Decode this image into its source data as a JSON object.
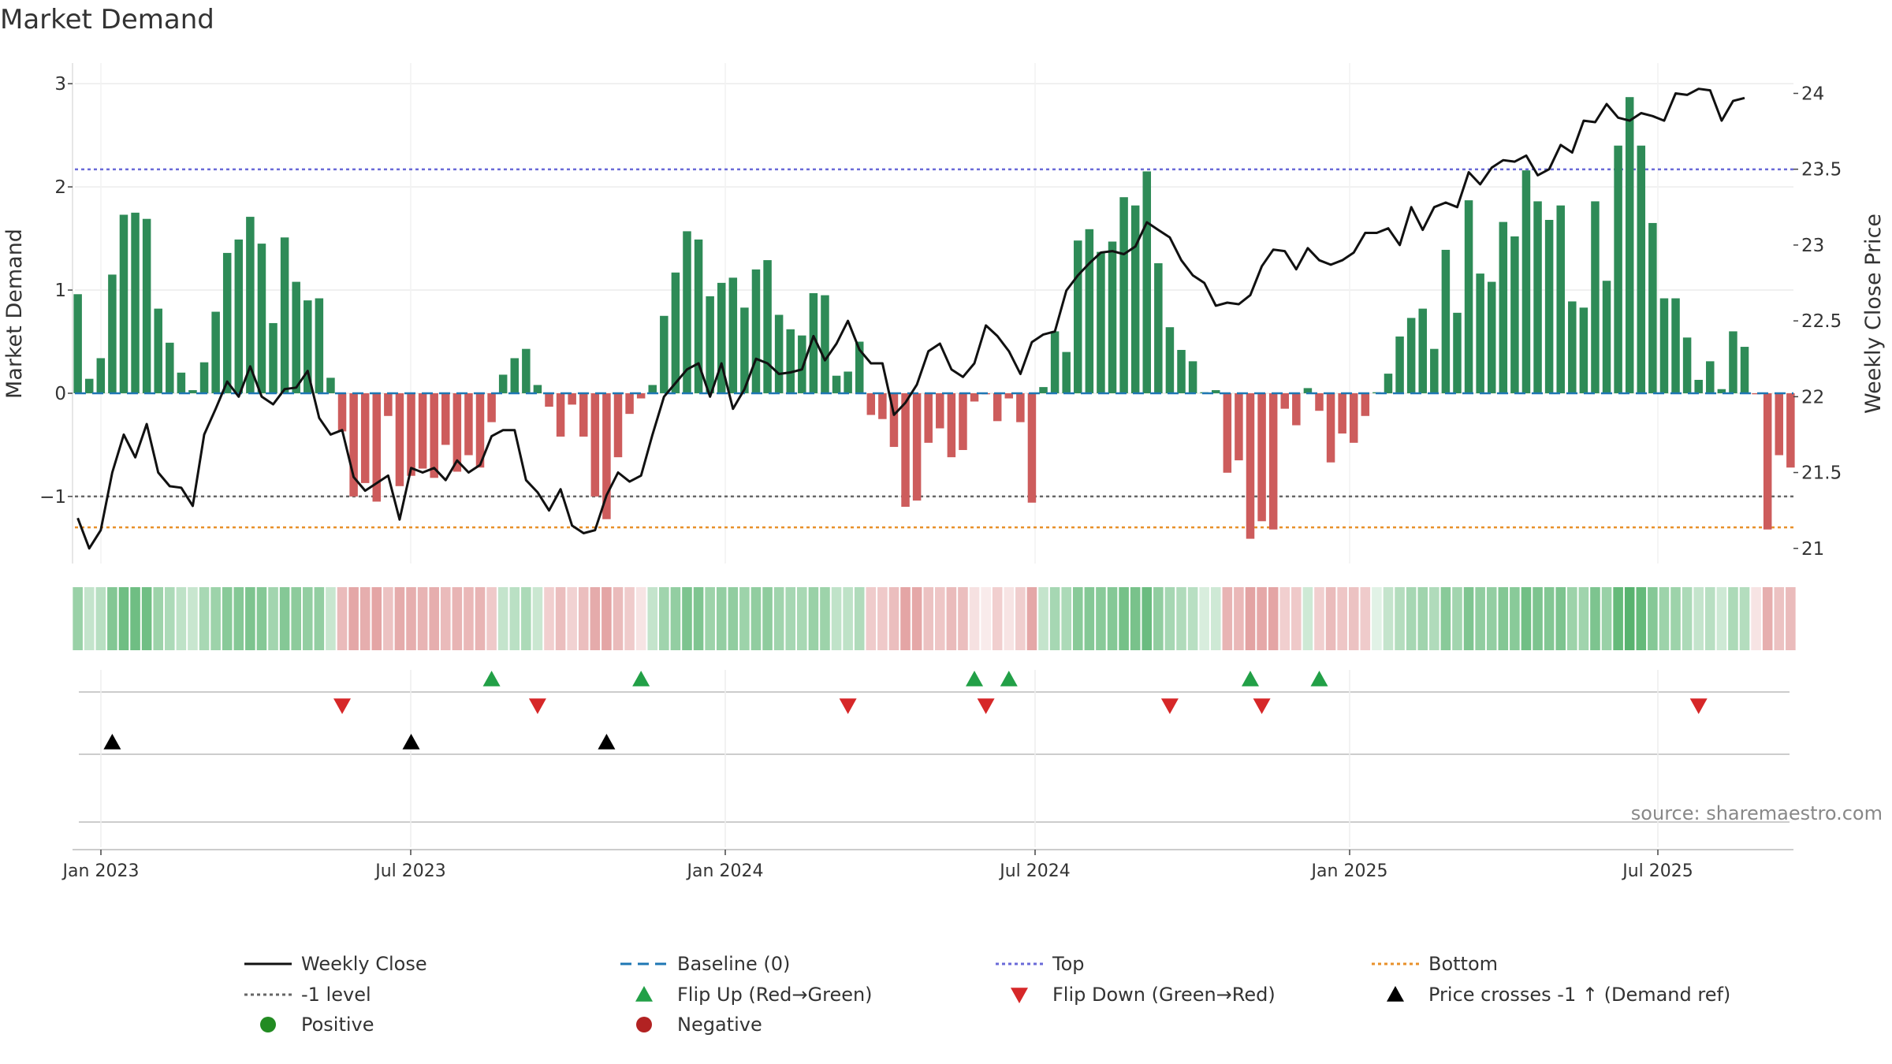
{
  "chart_data": {
    "type": "bar+line",
    "title": "Market Demand",
    "source": "source: sharemaestro.com",
    "ylabel_left": "Market Demand",
    "ylabel_right": "Weekly Close Price",
    "ylim_left": [
      -1.65,
      3.2
    ],
    "ylim_right": [
      20.9,
      24.2
    ],
    "yticks_left": [
      "3",
      "2",
      "1",
      "0",
      "−1"
    ],
    "yticks_right": [
      "24",
      "23.5",
      "23",
      "22.5",
      "22",
      "21.5",
      "21"
    ],
    "xticks": [
      "Jan 2023",
      "Jul 2023",
      "Jan 2024",
      "Jul 2024",
      "Jan 2025",
      "Jul 2025"
    ],
    "reference_lines": {
      "top": 2.17,
      "bottom": -1.3,
      "minus_one": -1,
      "baseline": 0
    },
    "demand": [
      0.96,
      0.14,
      0.34,
      1.15,
      1.73,
      1.75,
      1.69,
      0.82,
      0.49,
      0.2,
      0.03,
      0.3,
      0.79,
      1.36,
      1.49,
      1.71,
      1.45,
      0.68,
      1.51,
      1.08,
      0.9,
      0.92,
      0.15,
      -0.37,
      -1.0,
      -0.87,
      -1.05,
      -0.22,
      -0.9,
      -0.8,
      -0.73,
      -0.82,
      -0.5,
      -0.76,
      -0.6,
      -0.72,
      -0.28,
      0.18,
      0.34,
      0.43,
      0.08,
      -0.13,
      -0.42,
      -0.11,
      -0.42,
      -1.0,
      -1.22,
      -0.62,
      -0.2,
      -0.05,
      0.08,
      0.75,
      1.17,
      1.57,
      1.49,
      0.94,
      1.07,
      1.12,
      0.83,
      1.2,
      1.29,
      0.76,
      0.62,
      0.56,
      0.97,
      0.95,
      0.17,
      0.21,
      0.5,
      -0.21,
      -0.25,
      -0.52,
      -1.1,
      -1.04,
      -0.48,
      -0.34,
      -0.62,
      -0.55,
      -0.08,
      -0.01,
      -0.27,
      -0.05,
      -0.28,
      -1.06,
      0.06,
      0.6,
      0.4,
      1.48,
      1.59,
      1.37,
      1.47,
      1.9,
      1.82,
      2.15,
      1.26,
      0.64,
      0.42,
      0.31,
      0.01,
      0.03,
      -0.77,
      -0.65,
      -1.41,
      -1.24,
      -1.32,
      -0.15,
      -0.31,
      0.05,
      -0.17,
      -0.67,
      -0.39,
      -0.48,
      -0.22,
      0.01,
      0.19,
      0.55,
      0.73,
      0.82,
      0.43,
      1.39,
      0.78,
      1.87,
      1.16,
      1.08,
      1.66,
      1.52,
      2.16,
      1.86,
      1.68,
      1.82,
      0.89,
      0.83,
      1.86,
      1.09,
      2.4,
      2.87,
      2.4,
      1.65,
      0.92,
      0.92,
      0.54,
      0.13,
      0.31,
      0.04,
      0.6,
      0.45,
      -0.01,
      -1.32,
      -0.6,
      -0.72
    ],
    "close": [
      21.2,
      21.0,
      21.12,
      21.5,
      21.75,
      21.6,
      21.82,
      21.5,
      21.41,
      21.4,
      21.28,
      21.75,
      21.92,
      22.1,
      22.0,
      22.2,
      22.0,
      21.95,
      22.05,
      22.06,
      22.17,
      21.86,
      21.75,
      21.78,
      21.47,
      21.38,
      21.43,
      21.48,
      21.19,
      21.53,
      21.5,
      21.53,
      21.45,
      21.58,
      21.5,
      21.55,
      21.74,
      21.78,
      21.78,
      21.45,
      21.37,
      21.25,
      21.39,
      21.15,
      21.1,
      21.12,
      21.35,
      21.5,
      21.44,
      21.48,
      21.75,
      22.0,
      22.09,
      22.18,
      22.22,
      22.0,
      22.22,
      21.92,
      22.05,
      22.25,
      22.22,
      22.15,
      22.16,
      22.18,
      22.4,
      22.24,
      22.35,
      22.5,
      22.31,
      22.22,
      22.22,
      21.88,
      21.96,
      22.08,
      22.3,
      22.35,
      22.18,
      22.13,
      22.22,
      22.47,
      22.4,
      22.3,
      22.15,
      22.36,
      22.41,
      22.43,
      22.7,
      22.8,
      22.88,
      22.95,
      22.96,
      22.94,
      22.99,
      23.15,
      23.1,
      23.05,
      22.9,
      22.8,
      22.75,
      22.6,
      22.62,
      22.61,
      22.67,
      22.86,
      22.97,
      22.96,
      22.84,
      22.98,
      22.9,
      22.87,
      22.9,
      22.95,
      23.08,
      23.08,
      23.11,
      23.0,
      23.25,
      23.1,
      23.25,
      23.28,
      23.25,
      23.48,
      23.4,
      23.51,
      23.56,
      23.55,
      23.59,
      23.46,
      23.5,
      23.66,
      23.61,
      23.82,
      23.81,
      23.93,
      23.84,
      23.82,
      23.87,
      23.85,
      23.82,
      24.0,
      23.99,
      24.03,
      24.02,
      23.82,
      23.95,
      23.97
    ],
    "intensity": [
      0.52,
      0.3,
      0.36,
      0.63,
      0.73,
      0.73,
      0.72,
      0.5,
      0.42,
      0.33,
      0.28,
      0.44,
      0.5,
      0.6,
      0.62,
      0.66,
      0.62,
      0.47,
      0.62,
      0.58,
      0.55,
      0.55,
      0.28,
      0.5,
      0.65,
      0.6,
      0.66,
      0.45,
      0.62,
      0.6,
      0.55,
      0.6,
      0.5,
      0.55,
      0.52,
      0.55,
      0.4,
      0.3,
      0.35,
      0.42,
      0.27,
      0.35,
      0.48,
      0.33,
      0.48,
      0.62,
      0.66,
      0.5,
      0.38,
      0.2,
      0.3,
      0.48,
      0.55,
      0.66,
      0.65,
      0.5,
      0.55,
      0.56,
      0.5,
      0.56,
      0.57,
      0.48,
      0.45,
      0.44,
      0.52,
      0.5,
      0.32,
      0.33,
      0.4,
      0.38,
      0.4,
      0.48,
      0.66,
      0.64,
      0.45,
      0.42,
      0.5,
      0.48,
      0.22,
      0.15,
      0.35,
      0.2,
      0.36,
      0.65,
      0.3,
      0.45,
      0.42,
      0.6,
      0.62,
      0.6,
      0.62,
      0.7,
      0.68,
      0.75,
      0.56,
      0.45,
      0.4,
      0.36,
      0.2,
      0.25,
      0.55,
      0.52,
      0.68,
      0.64,
      0.66,
      0.35,
      0.4,
      0.25,
      0.35,
      0.5,
      0.42,
      0.45,
      0.38,
      0.15,
      0.3,
      0.38,
      0.45,
      0.48,
      0.4,
      0.6,
      0.47,
      0.65,
      0.56,
      0.55,
      0.63,
      0.6,
      0.72,
      0.66,
      0.63,
      0.66,
      0.5,
      0.48,
      0.66,
      0.52,
      0.78,
      0.85,
      0.78,
      0.62,
      0.5,
      0.5,
      0.42,
      0.3,
      0.36,
      0.25,
      0.42,
      0.38,
      0.2,
      0.6,
      0.45,
      0.5
    ],
    "flip_up_weeks": [
      36,
      49,
      78,
      81,
      102,
      108
    ],
    "flip_down_weeks": [
      23,
      40,
      67,
      79,
      95,
      103,
      141
    ],
    "price_cross_weeks": [
      3,
      29,
      46
    ],
    "legend": [
      "Weekly Close",
      "Baseline (0)",
      "Top",
      "Bottom",
      "-1 level",
      "Flip Up (Red→Green)",
      "Flip Down (Green→Red)",
      "Price crosses -1 ↑ (Demand ref)",
      "Positive",
      "Negative"
    ]
  },
  "colors": {
    "positive": "#2e8b57",
    "negative": "#cd5c5c",
    "close_line": "#111111",
    "baseline": "#1f77b4",
    "top": "#6a6ad8",
    "bottom": "#e8902a",
    "minus_one": "#666666",
    "flip_up": "#22a047",
    "flip_down": "#d62728",
    "cross": "#000000",
    "legend_positive": "#228b22",
    "legend_negative": "#b22222"
  }
}
